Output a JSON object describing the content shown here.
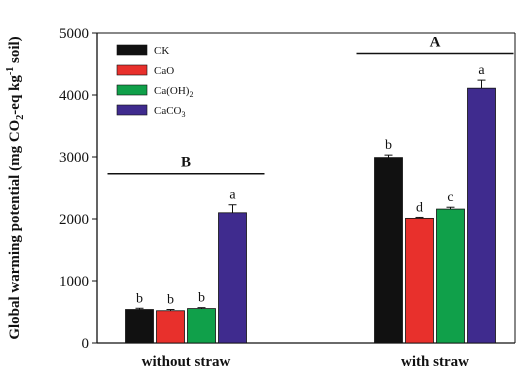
{
  "chart_data": {
    "type": "bar",
    "categories": [
      "without straw",
      "with straw"
    ],
    "series": [
      {
        "name": "CK",
        "color": "#111111",
        "values": [
          540,
          2990
        ],
        "errors": [
          20,
          40
        ],
        "letters": [
          "b",
          "b"
        ]
      },
      {
        "name": "CaO",
        "color": "#e8302c",
        "values": [
          520,
          2010
        ],
        "errors": [
          20,
          15
        ],
        "letters": [
          "b",
          "d"
        ]
      },
      {
        "name": "Ca(OH)2",
        "color": "#10a04a",
        "values": [
          555,
          2160
        ],
        "errors": [
          15,
          30
        ],
        "letters": [
          "b",
          "c"
        ]
      },
      {
        "name": "CaCO3",
        "color": "#3f2b8e",
        "values": [
          2100,
          4110
        ],
        "errors": [
          130,
          130
        ],
        "letters": [
          "a",
          "a"
        ]
      }
    ],
    "legend_labels": [
      "CK",
      "CaO",
      "Ca(OH)",
      "CaCO"
    ],
    "legend_subscripts": [
      "",
      "",
      "2",
      "3"
    ],
    "ylabel_parts": [
      "Global warming potential (mg CO",
      "2",
      "-eq kg",
      "-1",
      " soil)"
    ],
    "ylim": [
      0,
      5000
    ],
    "yticks": [
      "0",
      "1000",
      "2000",
      "3000",
      "4000",
      "5000"
    ],
    "group_labels": [
      "B",
      "A"
    ],
    "group_label_values": [
      2730,
      4670
    ],
    "legend_position": "top-left"
  }
}
